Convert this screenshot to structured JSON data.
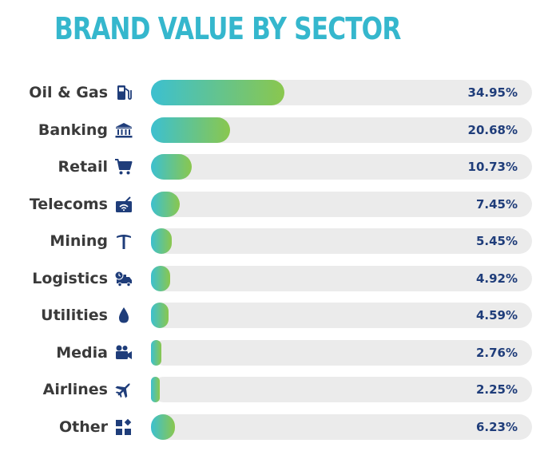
{
  "chart_data": {
    "type": "bar",
    "orientation": "horizontal",
    "title": "BRAND VALUE BY SECTOR",
    "categories": [
      "Oil & Gas",
      "Banking",
      "Retail",
      "Telecoms",
      "Mining",
      "Logistics",
      "Utilities",
      "Media",
      "Airlines",
      "Other"
    ],
    "values": [
      34.95,
      20.68,
      10.73,
      7.45,
      5.45,
      4.92,
      4.59,
      2.76,
      2.25,
      6.23
    ],
    "value_labels": [
      "34.95%",
      "20.68%",
      "10.73%",
      "7.45%",
      "5.45%",
      "4.92%",
      "4.59%",
      "2.76%",
      "2.25%",
      "6.23%"
    ],
    "icons": [
      "fuel-pump-icon",
      "bank-icon",
      "shopping-cart-icon",
      "router-icon",
      "pickaxe-icon",
      "delivery-truck-icon",
      "water-drop-icon",
      "video-camera-icon",
      "airplane-icon",
      "shapes-icon"
    ],
    "xlim": [
      0,
      100
    ],
    "grid": false,
    "legend": "none"
  },
  "colors": {
    "title": "#35b7cd",
    "bar_start": "#3cc0d0",
    "bar_end": "#8ac74e",
    "track": "#ebebeb",
    "value_text": "#1f3d7a",
    "label_text": "#3a3a3a",
    "icon": "#1f3d7a"
  }
}
